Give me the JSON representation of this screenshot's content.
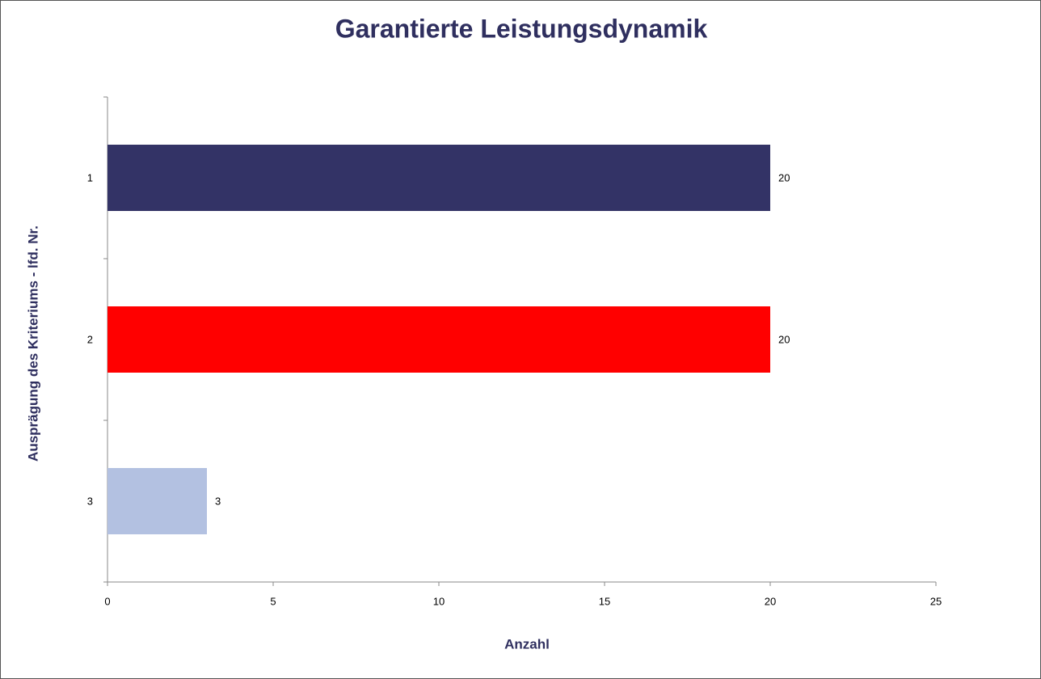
{
  "chart_data": {
    "type": "hbar",
    "title": "Garantierte Leistungsdynamik",
    "x_label": "Anzahl",
    "y_label": "Ausprägung des Kriteriums - lfd. Nr.",
    "categories": [
      "1",
      "2",
      "3"
    ],
    "values": [
      20,
      20,
      3
    ],
    "colors": [
      "#333366",
      "#ff0000",
      "#b3c1e1"
    ],
    "xlim": [
      0,
      25
    ],
    "xticks": [
      0,
      5,
      10,
      15,
      20,
      25
    ],
    "grid": false
  }
}
